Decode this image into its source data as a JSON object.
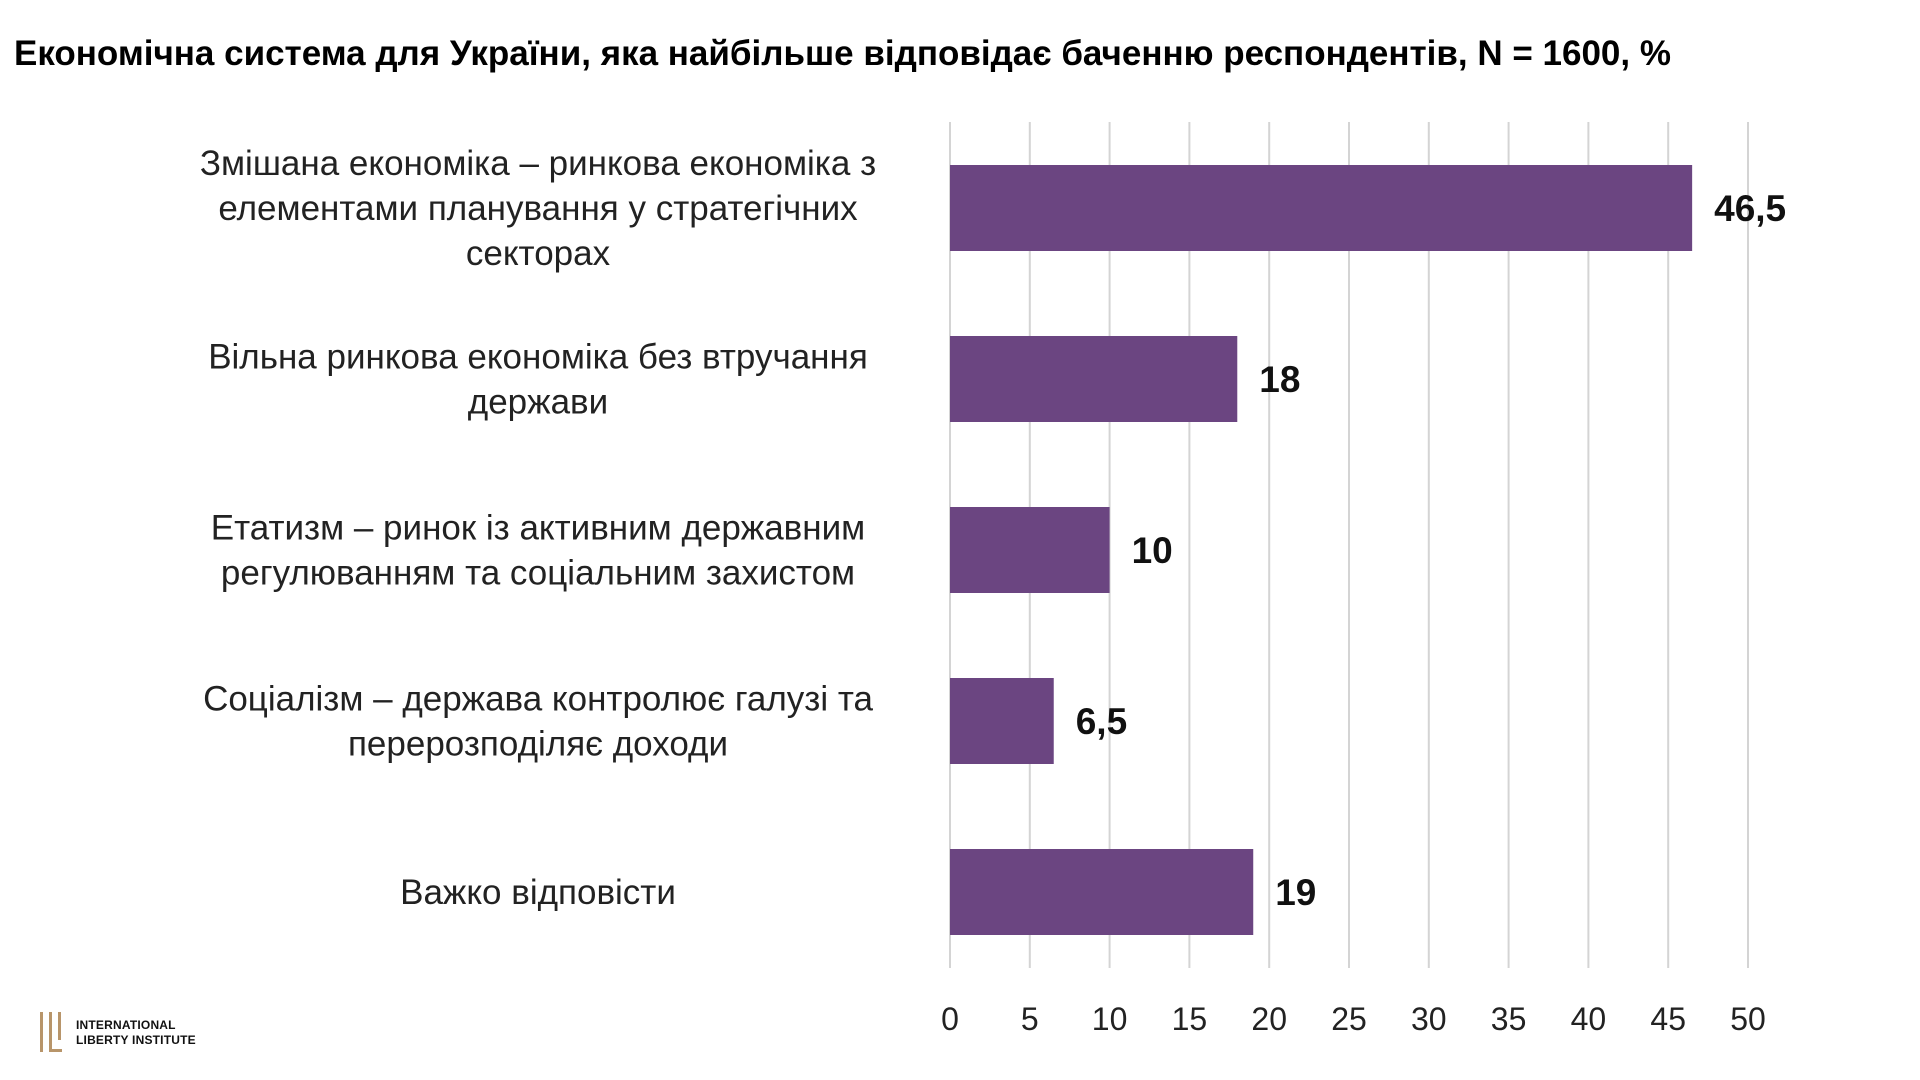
{
  "title": "Економічна система для України, яка найбільше відповідає баченню респондентів, N = 1600, %",
  "logo": {
    "text_line1": "INTERNATIONAL",
    "text_line2": "LIBERTY INSTITUTE",
    "mark_color": "#b8956a"
  },
  "chart_data": {
    "type": "bar",
    "orientation": "horizontal",
    "title": "Економічна система для України, яка найбільше відповідає баченню респондентів, N = 1600, %",
    "categories": [
      [
        "Змішана економіка – ринкова економіка з",
        "елементами планування у стратегічних",
        "секторах"
      ],
      [
        "Вільна ринкова економіка без втручання",
        "держави"
      ],
      [
        "Етатизм – ринок із активним державним",
        "регулюванням та соціальним захистом"
      ],
      [
        "Соціалізм – держава контролює галузі та",
        "перерозподіляє доходи"
      ],
      [
        "Важко відповісти"
      ]
    ],
    "values": [
      46.5,
      18,
      10,
      6.5,
      19
    ],
    "value_labels": [
      "46,5",
      "18",
      "10",
      "6,5",
      "19"
    ],
    "xlim": [
      0,
      50
    ],
    "xticks": [
      0,
      5,
      10,
      15,
      20,
      25,
      30,
      35,
      40,
      45,
      50
    ],
    "grid": true,
    "bar_color": "#6b4581",
    "grid_color": "#d4d4d4",
    "legend": "none"
  }
}
